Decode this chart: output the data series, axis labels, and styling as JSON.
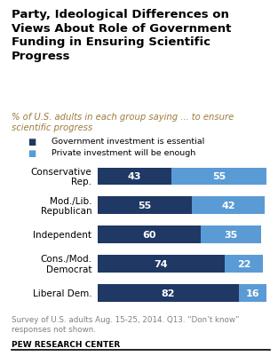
{
  "title": "Party, Ideological Differences on\nViews About Role of Government\nFunding in Ensuring Scientific\nProgress",
  "subtitle": "% of U.S. adults in each group saying ... to ensure\nscientific progress",
  "categories": [
    "Conservative\nRep.",
    "Mod./Lib.\nRepublican",
    "Independent",
    "Cons./Mod.\nDemocrat",
    "Liberal Dem."
  ],
  "gov_values": [
    43,
    55,
    60,
    74,
    82
  ],
  "priv_values": [
    55,
    42,
    35,
    22,
    16
  ],
  "gov_color": "#1f3864",
  "priv_color": "#5b9bd5",
  "legend_labels": [
    "Government investment is essential",
    "Private investment will be enough"
  ],
  "footnote": "Survey of U.S. adults Aug. 15-25, 2014. Q13. “Don’t know”\nresponses not shown.",
  "source": "PEW RESEARCH CENTER",
  "background_color": "#ffffff",
  "title_color": "#000000",
  "subtitle_color": "#9c7c3c",
  "footnote_color": "#808080"
}
